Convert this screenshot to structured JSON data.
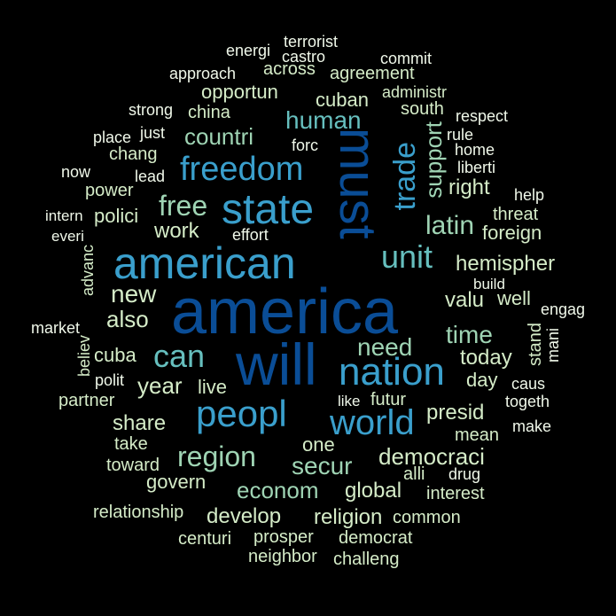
{
  "cloud": {
    "words": {
      "america": "america",
      "will": "will",
      "must": "must",
      "american": "american",
      "state": "state",
      "peopl": "peopl",
      "nation": "nation",
      "world": "world",
      "freedom": "freedom",
      "trade": "trade",
      "unit": "unit",
      "region": "region",
      "can": "can",
      "human": "human",
      "secur": "secur",
      "free": "free",
      "countri": "countri",
      "latin": "latin",
      "hemispher": "hemispher",
      "time": "time",
      "need": "need",
      "democraci": "democraci",
      "econom": "econom",
      "presid": "presid",
      "new": "new",
      "year": "year",
      "support": "support",
      "valu": "valu",
      "today": "today",
      "right": "right",
      "share": "share",
      "also": "also",
      "work": "work",
      "one": "one",
      "global": "global",
      "develop": "develop",
      "religion": "religion",
      "cuba": "cuba",
      "govern": "govern",
      "live": "live",
      "day": "day",
      "polici": "polici",
      "foreign": "foreign",
      "cuban": "cuban",
      "opportun": "opportun",
      "well": "well",
      "prosper": "prosper",
      "democrat": "democrat",
      "chang": "chang",
      "power": "power",
      "china": "china",
      "agreement": "agreement",
      "across": "across",
      "threat": "threat",
      "futur": "futur",
      "partner": "partner",
      "take": "take",
      "toward": "toward",
      "neighbor": "neighbor",
      "challeng": "challeng",
      "centuri": "centuri",
      "relationship": "relationship",
      "common": "common",
      "interest": "interest",
      "alli": "alli",
      "mean": "mean",
      "drug": "drug",
      "make": "make",
      "togeth": "togeth",
      "caus": "caus",
      "stand": "stand",
      "mani": "mani",
      "engag": "engag",
      "build": "build",
      "help": "help",
      "liberti": "liberti",
      "home": "home",
      "rule": "rule",
      "respect": "respect",
      "south": "south",
      "administr": "administr",
      "commit": "commit",
      "terrorist": "terrorist",
      "castro": "castro",
      "energi": "energi",
      "approach": "approach",
      "strong": "strong",
      "place": "place",
      "just": "just",
      "forc": "forc",
      "now": "now",
      "lead": "lead",
      "intern": "intern",
      "everi": "everi",
      "effort": "effort",
      "advanc": "advanc",
      "market": "market",
      "believ": "believ",
      "polit": "polit",
      "like": "like"
    }
  }
}
